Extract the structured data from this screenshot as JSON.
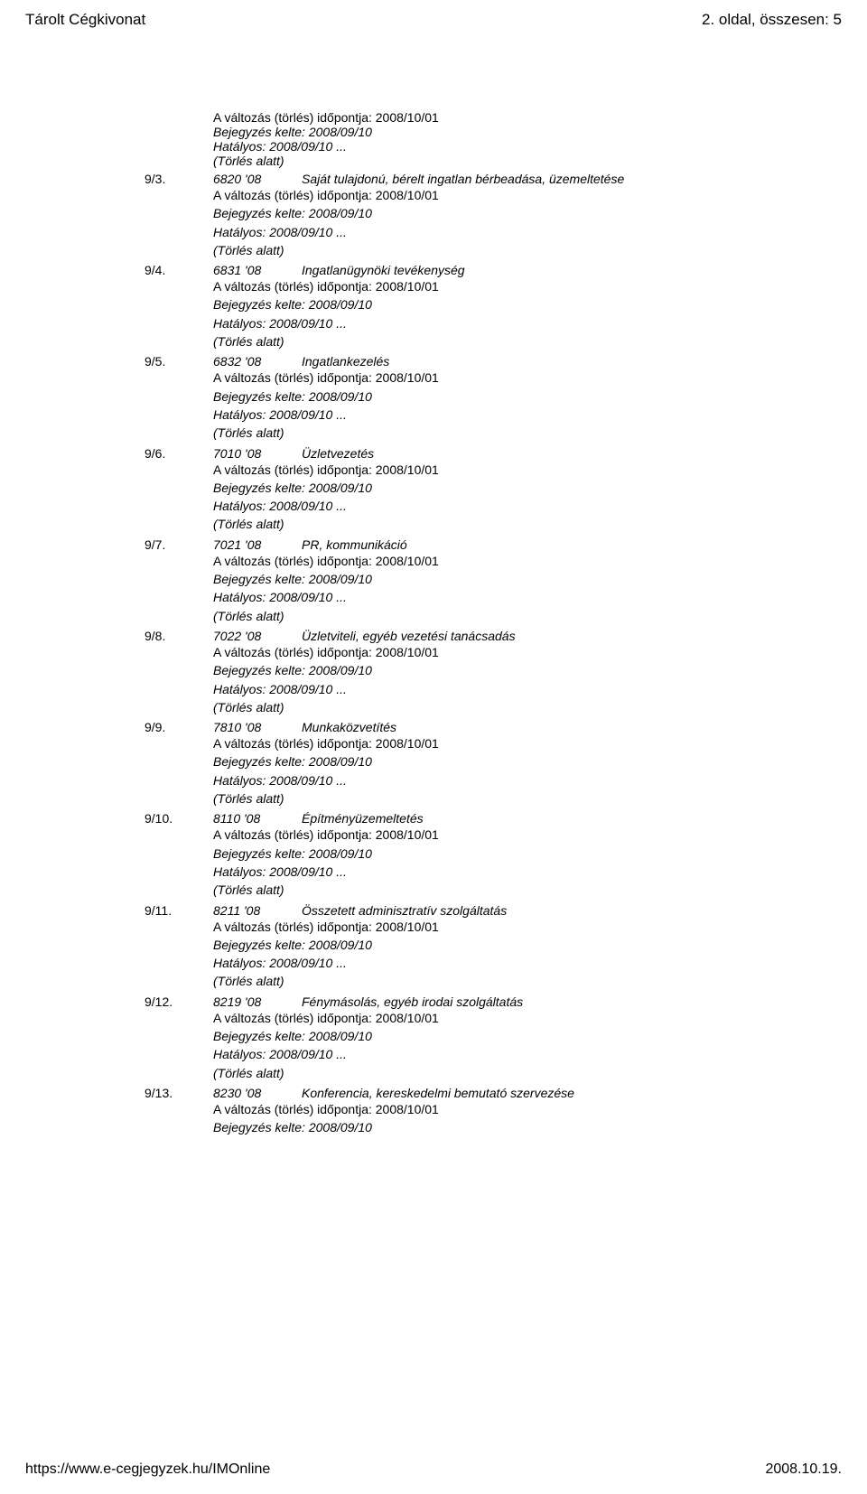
{
  "header": {
    "left": "Tárolt Cégkivonat",
    "right": "2. oldal, összesen: 5"
  },
  "labels": {
    "change_date_prefix": "A változás (törlés) időpontja:",
    "entry_date_prefix": "Bejegyzés kelte:",
    "effective_prefix": "Hatályos:",
    "deletion": "(Törlés alatt)"
  },
  "first_block": {
    "change_date": "2008/10/01",
    "entry_date": "2008/09/10",
    "effective": "2008/09/10 ..."
  },
  "entries": [
    {
      "num": "9/3.",
      "code": "6820 '08",
      "desc": "Saját tulajdonú, bérelt ingatlan bérbeadása, üzemeltetése",
      "change_date": "2008/10/01",
      "entry_date": "2008/09/10",
      "effective": "2008/09/10 ...",
      "deleted": true
    },
    {
      "num": "9/4.",
      "code": "6831 '08",
      "desc": "Ingatlanügynöki tevékenység",
      "change_date": "2008/10/01",
      "entry_date": "2008/09/10",
      "effective": "2008/09/10 ...",
      "deleted": true
    },
    {
      "num": "9/5.",
      "code": "6832 '08",
      "desc": "Ingatlankezelés",
      "change_date": "2008/10/01",
      "entry_date": "2008/09/10",
      "effective": "2008/09/10 ...",
      "deleted": true
    },
    {
      "num": "9/6.",
      "code": "7010 '08",
      "desc": "Üzletvezetés",
      "change_date": "2008/10/01",
      "entry_date": "2008/09/10",
      "effective": "2008/09/10 ...",
      "deleted": true
    },
    {
      "num": "9/7.",
      "code": "7021 '08",
      "desc": "PR, kommunikáció",
      "change_date": "2008/10/01",
      "entry_date": "2008/09/10",
      "effective": "2008/09/10 ...",
      "deleted": true
    },
    {
      "num": "9/8.",
      "code": "7022 '08",
      "desc": "Üzletviteli, egyéb vezetési tanácsadás",
      "change_date": "2008/10/01",
      "entry_date": "2008/09/10",
      "effective": "2008/09/10 ...",
      "deleted": true
    },
    {
      "num": "9/9.",
      "code": "7810 '08",
      "desc": "Munkaközvetítés",
      "change_date": "2008/10/01",
      "entry_date": "2008/09/10",
      "effective": "2008/09/10 ...",
      "deleted": true
    },
    {
      "num": "9/10.",
      "code": "8110 '08",
      "desc": "Építményüzemeltetés",
      "change_date": "2008/10/01",
      "entry_date": "2008/09/10",
      "effective": "2008/09/10 ...",
      "deleted": true
    },
    {
      "num": "9/11.",
      "code": "8211 '08",
      "desc": "Összetett adminisztratív szolgáltatás",
      "change_date": "2008/10/01",
      "entry_date": "2008/09/10",
      "effective": "2008/09/10 ...",
      "deleted": true
    },
    {
      "num": "9/12.",
      "code": "8219 '08",
      "desc": "Fénymásolás, egyéb irodai szolgáltatás",
      "change_date": "2008/10/01",
      "entry_date": "2008/09/10",
      "effective": "2008/09/10 ...",
      "deleted": true
    },
    {
      "num": "9/13.",
      "code": "8230 '08",
      "desc": "Konferencia, kereskedelmi bemutató szervezése",
      "change_date": "2008/10/01",
      "entry_date": "2008/09/10",
      "effective": null,
      "deleted": false
    }
  ],
  "footer": {
    "url": "https://www.e-cegjegyzek.hu/IMOnline",
    "date": "2008.10.19."
  }
}
